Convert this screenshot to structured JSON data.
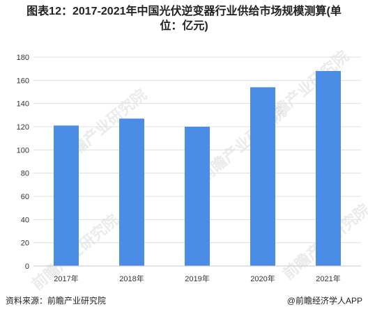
{
  "title_line1": "图表12：2017-2021年中国光伏逆变器行业供给市场规模测算(单",
  "title_line2": "位：亿元)",
  "source": "资料来源：前瞻产业研究院",
  "credit": "@前瞻经济学人APP",
  "watermark": "前瞻产业研究院",
  "colors": {
    "bar": "#4a8ce6",
    "grid": "#e0e0e0",
    "axis": "#c8c8c8"
  },
  "chart_data": {
    "type": "bar",
    "categories": [
      "2017年",
      "2018年",
      "2019年",
      "2020年",
      "2021年"
    ],
    "values": [
      121,
      127,
      120,
      154,
      168
    ],
    "ylim": [
      0,
      180
    ],
    "yticks": [
      0,
      20,
      40,
      60,
      80,
      100,
      120,
      140,
      160,
      180
    ],
    "grid": true,
    "title": "",
    "xlabel": "",
    "ylabel": ""
  }
}
